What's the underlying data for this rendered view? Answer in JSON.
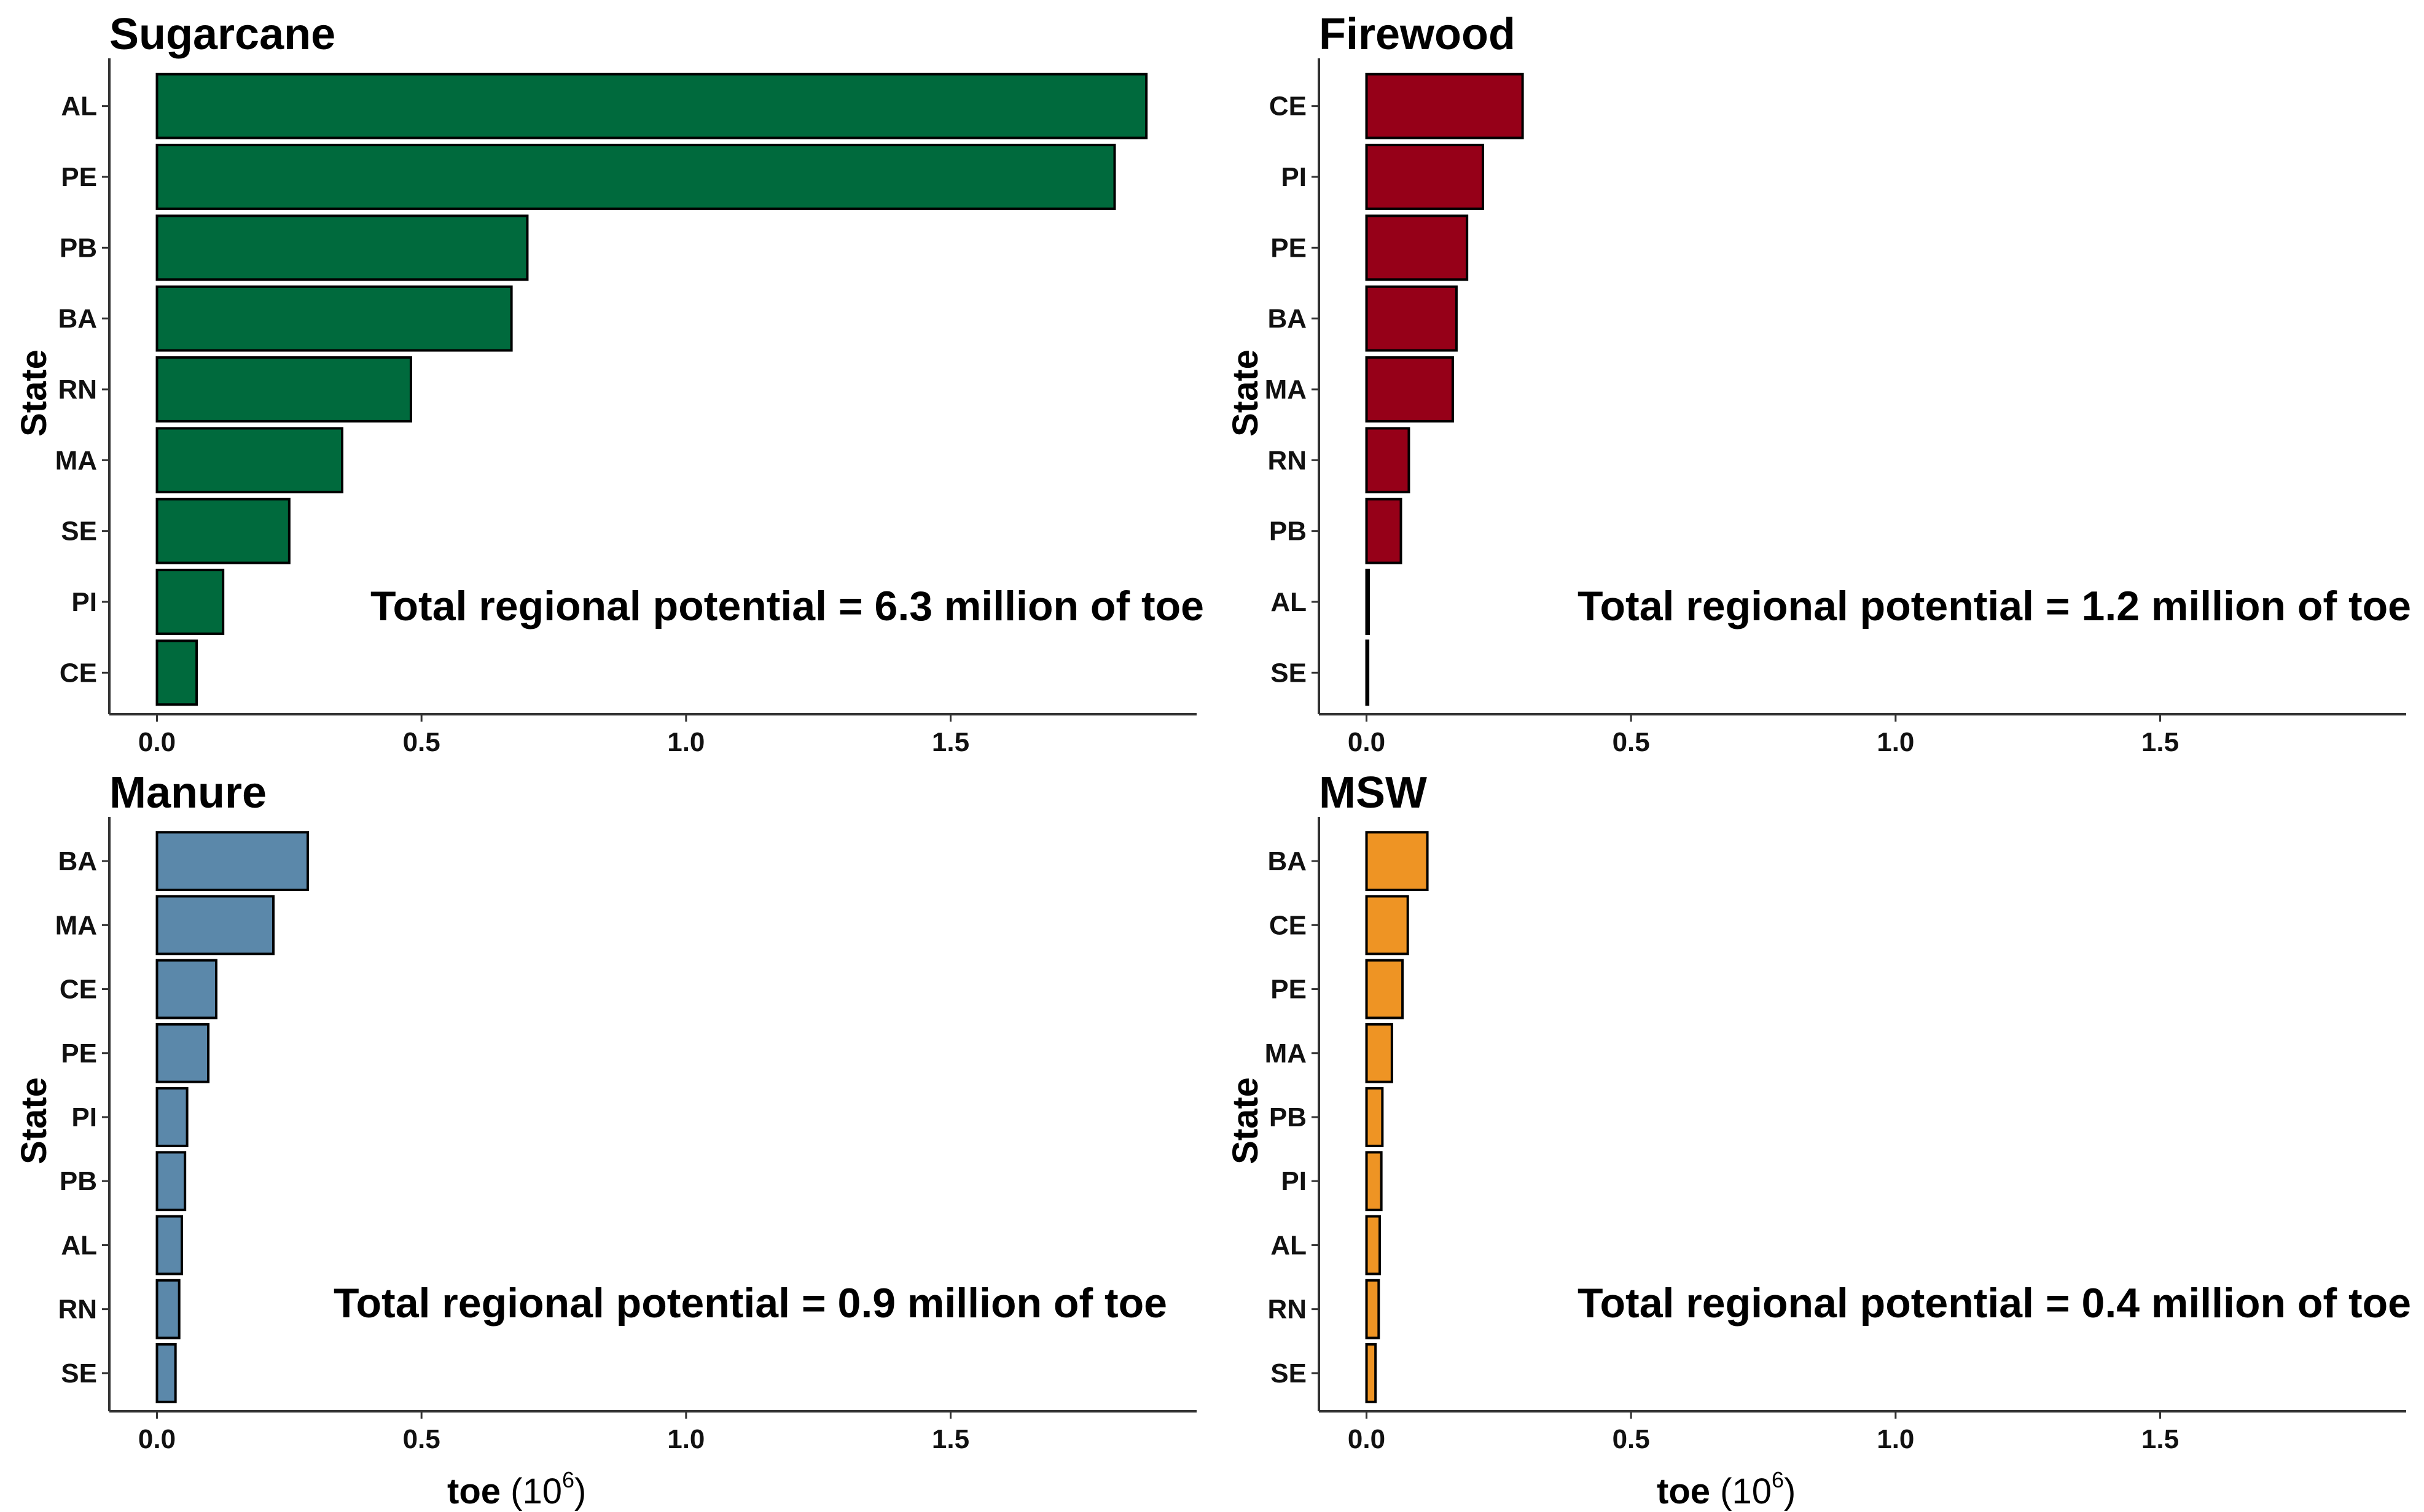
{
  "chart_data": [
    {
      "type": "bar",
      "orientation": "horizontal",
      "title": "Sugarcane",
      "ylabel": "State",
      "xlabel": "",
      "categories": [
        "AL",
        "PE",
        "PB",
        "BA",
        "RN",
        "MA",
        "SE",
        "PI",
        "CE"
      ],
      "values": [
        1.87,
        1.81,
        0.7,
        0.67,
        0.48,
        0.35,
        0.25,
        0.125,
        0.075
      ],
      "xlim": [
        -0.09,
        1.965
      ],
      "xticks": [
        "0.0",
        "0.5",
        "1.0",
        "1.5"
      ],
      "xtick_values": [
        0,
        0.5,
        1.0,
        1.5
      ],
      "color": "#006a3d",
      "annotation": "Total regional potential = 6.3 million  of toe"
    },
    {
      "type": "bar",
      "orientation": "horizontal",
      "title": "Firewood",
      "ylabel": "State",
      "xlabel": "",
      "categories": [
        "CE",
        "PI",
        "PE",
        "BA",
        "MA",
        "RN",
        "PB",
        "AL",
        "SE"
      ],
      "values": [
        0.295,
        0.22,
        0.19,
        0.17,
        0.163,
        0.08,
        0.065,
        0.004,
        0.003
      ],
      "xlim": [
        -0.09,
        1.965
      ],
      "xticks": [
        "0.0",
        "0.5",
        "1.0",
        "1.5"
      ],
      "xtick_values": [
        0,
        0.5,
        1.0,
        1.5
      ],
      "color": "#960018",
      "annotation": "Total regional potential = 1.2 million  of toe"
    },
    {
      "type": "bar",
      "orientation": "horizontal",
      "title": "Manure",
      "ylabel": "State",
      "xlabel": "toe",
      "xlabel_unit_base": "(10",
      "xlabel_unit_exp": "6",
      "xlabel_unit_end": ")",
      "categories": [
        "BA",
        "MA",
        "CE",
        "PE",
        "PI",
        "PB",
        "AL",
        "RN",
        "SE"
      ],
      "values": [
        0.285,
        0.22,
        0.112,
        0.097,
        0.057,
        0.053,
        0.047,
        0.042,
        0.035
      ],
      "xlim": [
        -0.09,
        1.965
      ],
      "xticks": [
        "0.0",
        "0.5",
        "1.0",
        "1.5"
      ],
      "xtick_values": [
        0,
        0.5,
        1.0,
        1.5
      ],
      "color": "#5b88aa",
      "annotation": "Total regional potential = 0.9 million  of toe"
    },
    {
      "type": "bar",
      "orientation": "horizontal",
      "title": "MSW",
      "ylabel": "State",
      "xlabel": "toe",
      "xlabel_unit_base": "(10",
      "xlabel_unit_exp": "6",
      "xlabel_unit_end": ")",
      "categories": [
        "BA",
        "CE",
        "PE",
        "MA",
        "PB",
        "PI",
        "AL",
        "RN",
        "SE"
      ],
      "values": [
        0.115,
        0.078,
        0.068,
        0.048,
        0.03,
        0.028,
        0.025,
        0.023,
        0.017
      ],
      "xlim": [
        -0.09,
        1.965
      ],
      "xticks": [
        "0.0",
        "0.5",
        "1.0",
        "1.5"
      ],
      "xtick_values": [
        0,
        0.5,
        1.0,
        1.5
      ],
      "color": "#ee9424",
      "annotation": "Total regional potential = 0.4 million  of toe"
    }
  ]
}
